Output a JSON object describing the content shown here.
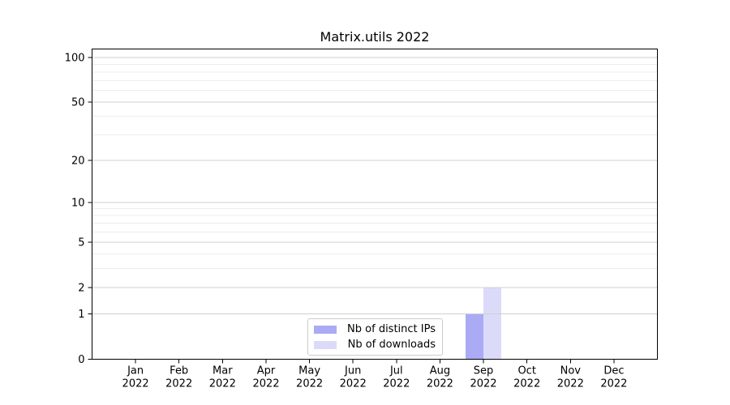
{
  "chart_data": {
    "type": "bar",
    "title": "Matrix.utils 2022",
    "categories": [
      "Jan 2022",
      "Feb 2022",
      "Mar 2022",
      "Apr 2022",
      "May 2022",
      "Jun 2022",
      "Jul 2022",
      "Aug 2022",
      "Sep 2022",
      "Oct 2022",
      "Nov 2022",
      "Dec 2022"
    ],
    "series": [
      {
        "name": "Nb of distinct IPs",
        "color": "#aaaaf5",
        "values": [
          0,
          0,
          0,
          0,
          0,
          0,
          0,
          0,
          1,
          0,
          0,
          0
        ]
      },
      {
        "name": "Nb of downloads",
        "color": "#dbdbf9",
        "values": [
          0,
          0,
          0,
          0,
          0,
          0,
          0,
          0,
          2,
          0,
          0,
          0
        ]
      }
    ],
    "xlabel": "",
    "ylabel": "",
    "yscale": "log1p",
    "ylim": [
      0,
      114
    ],
    "y_ticks": [
      0,
      1,
      2,
      5,
      10,
      20,
      50,
      100
    ],
    "y_minor_gridlines": [
      3,
      4,
      6,
      7,
      8,
      9,
      30,
      40,
      60,
      70,
      80,
      90
    ],
    "grid": "horizontal",
    "legend_position": "lower center inside"
  },
  "style": {
    "background": "#ffffff",
    "axis_color": "#000000",
    "text_color": "#000000",
    "grid_major_color": "#cfcfcf",
    "grid_minor_color": "#ececec",
    "legend_border_color": "#cccccc"
  }
}
